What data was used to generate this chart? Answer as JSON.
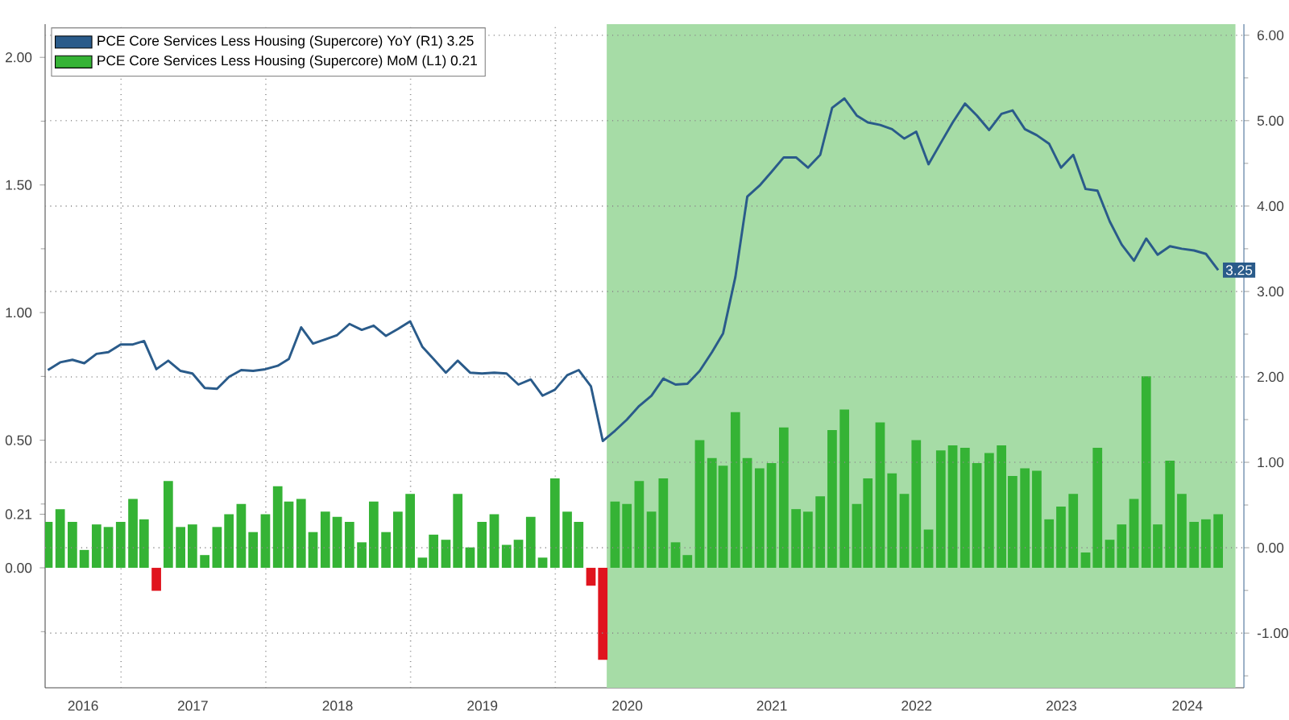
{
  "chart_data": {
    "type": "bar",
    "x": [
      "2016-06-30",
      "2016-07-31",
      "2016-08-31",
      "2016-09-30",
      "2016-10-31",
      "2016-11-30",
      "2016-12-31",
      "2017-01-31",
      "2017-02-28",
      "2017-03-31",
      "2017-04-30",
      "2017-05-31",
      "2017-06-30",
      "2017-07-31",
      "2017-08-31",
      "2017-09-30",
      "2017-10-31",
      "2017-11-30",
      "2017-12-31",
      "2018-01-31",
      "2018-02-28",
      "2018-03-31",
      "2018-04-30",
      "2018-05-31",
      "2018-06-30",
      "2018-07-31",
      "2018-08-31",
      "2018-09-30",
      "2018-10-31",
      "2018-11-30",
      "2018-12-31",
      "2019-01-31",
      "2019-02-28",
      "2019-03-31",
      "2019-04-30",
      "2019-05-31",
      "2019-06-30",
      "2019-07-31",
      "2019-08-31",
      "2019-09-30",
      "2019-10-31",
      "2019-11-30",
      "2019-12-31",
      "2020-01-31",
      "2020-02-29",
      "2020-03-31",
      "2020-04-30",
      "2020-05-31",
      "2020-06-30",
      "2020-07-31",
      "2020-08-31",
      "2020-09-30",
      "2020-10-31",
      "2020-11-30",
      "2020-12-31",
      "2021-01-31",
      "2021-02-28",
      "2021-03-31",
      "2021-04-30",
      "2021-05-31",
      "2021-06-30",
      "2021-07-31",
      "2021-08-31",
      "2021-09-30",
      "2021-10-31",
      "2021-11-30",
      "2021-12-31",
      "2022-01-31",
      "2022-02-28",
      "2022-03-31",
      "2022-04-30",
      "2022-05-31",
      "2022-06-30",
      "2022-07-31",
      "2022-08-31",
      "2022-09-30",
      "2022-10-31",
      "2022-11-30",
      "2022-12-31",
      "2023-01-31",
      "2023-02-28",
      "2023-03-31",
      "2023-04-30",
      "2023-05-31",
      "2023-06-30",
      "2023-07-31",
      "2023-08-31",
      "2023-09-30",
      "2023-10-31",
      "2023-11-30",
      "2023-12-31",
      "2024-01-31",
      "2024-02-29",
      "2024-03-31",
      "2024-04-30",
      "2024-05-31",
      "2024-06-30",
      "2024-07-31"
    ],
    "series": [
      {
        "name": "PCE Core Services Less Housing (Supercore) YoY (R1) 3.25",
        "type": "line",
        "axis": "y2",
        "color": "#2a5b8a",
        "values": [
          2.08,
          2.17,
          2.2,
          2.16,
          2.27,
          2.29,
          2.38,
          2.38,
          2.42,
          2.09,
          2.19,
          2.07,
          2.04,
          1.87,
          1.86,
          2.0,
          2.08,
          2.07,
          2.09,
          2.13,
          2.21,
          2.58,
          2.39,
          2.44,
          2.49,
          2.62,
          2.55,
          2.6,
          2.48,
          2.56,
          2.65,
          2.35,
          2.21,
          2.05,
          2.19,
          2.05,
          2.04,
          2.05,
          2.04,
          1.91,
          1.97,
          1.78,
          1.85,
          2.02,
          2.08,
          1.89,
          1.25,
          1.37,
          1.5,
          1.66,
          1.78,
          1.98,
          1.91,
          1.92,
          2.07,
          2.29,
          2.51,
          3.17,
          4.11,
          4.24,
          4.4,
          4.57,
          4.57,
          4.45,
          4.6,
          5.15,
          5.26,
          5.06,
          4.98,
          4.95,
          4.9,
          4.79,
          4.87,
          4.49,
          4.74,
          4.98,
          5.2,
          5.06,
          4.89,
          5.08,
          5.12,
          4.9,
          4.83,
          4.73,
          4.45,
          4.6,
          4.2,
          4.18,
          3.82,
          3.55,
          3.36,
          3.62,
          3.43,
          3.53,
          3.5,
          3.48,
          3.44,
          3.25
        ],
        "value_labels": [
          null,
          null,
          null,
          null,
          null,
          null,
          null,
          null,
          null,
          null,
          null,
          null,
          null,
          null,
          null,
          null,
          null,
          null,
          null,
          null,
          null,
          null,
          null,
          null,
          null,
          null,
          null,
          null,
          null,
          null,
          null,
          null,
          null,
          null,
          null,
          null,
          null,
          null,
          null,
          null,
          null,
          null,
          null,
          null,
          null,
          null,
          null,
          null,
          null,
          null,
          null,
          null,
          null,
          null,
          null,
          null,
          null,
          null,
          null,
          null,
          null,
          null,
          null,
          null,
          null,
          null,
          null,
          null,
          null,
          null,
          null,
          null,
          null,
          null,
          null,
          null,
          null,
          null,
          null,
          null,
          null,
          null,
          null,
          null,
          null,
          null,
          null,
          null,
          null,
          null,
          null,
          null,
          null,
          null,
          null,
          null,
          null,
          "3.25"
        ]
      },
      {
        "name": "PCE Core Services Less Housing (Supercore) MoM (L1) 0.21",
        "color": "#35b335",
        "values": [
          0.18,
          0.23,
          0.18,
          0.07,
          0.17,
          0.16,
          0.18,
          0.27,
          0.19,
          -0.09,
          0.34,
          0.16,
          0.17,
          0.05,
          0.16,
          0.21,
          0.25,
          0.14,
          0.21,
          0.32,
          0.26,
          0.27,
          0.14,
          0.22,
          0.2,
          0.18,
          0.1,
          0.26,
          0.14,
          0.22,
          0.29,
          0.04,
          0.13,
          0.11,
          0.29,
          0.08,
          0.18,
          0.21,
          0.09,
          0.11,
          0.2,
          0.04,
          0.35,
          0.22,
          0.18,
          -0.07,
          -0.36,
          0.26,
          0.25,
          0.34,
          0.22,
          0.35,
          0.1,
          0.05,
          0.5,
          0.43,
          0.4,
          0.61,
          0.43,
          0.39,
          0.41,
          0.55,
          0.23,
          0.22,
          0.28,
          0.54,
          0.62,
          0.25,
          0.35,
          0.57,
          0.37,
          0.29,
          0.5,
          0.15,
          0.46,
          0.48,
          0.47,
          0.41,
          0.45,
          0.48,
          0.36,
          0.39,
          0.38,
          0.19,
          0.24,
          0.29,
          0.06,
          0.47,
          0.11,
          0.17,
          0.27,
          0.75,
          0.17,
          0.42,
          0.29,
          0.18,
          0.19,
          0.21
        ],
        "colors": [
          "#35b335",
          "#35b335",
          "#35b335",
          "#35b335",
          "#35b335",
          "#35b335",
          "#35b335",
          "#35b335",
          "#35b335",
          "#e0141e",
          "#35b335",
          "#35b335",
          "#35b335",
          "#35b335",
          "#35b335",
          "#35b335",
          "#35b335",
          "#35b335",
          "#35b335",
          "#35b335",
          "#35b335",
          "#35b335",
          "#35b335",
          "#35b335",
          "#35b335",
          "#35b335",
          "#35b335",
          "#35b335",
          "#35b335",
          "#35b335",
          "#35b335",
          "#35b335",
          "#35b335",
          "#35b335",
          "#35b335",
          "#35b335",
          "#35b335",
          "#35b335",
          "#35b335",
          "#35b335",
          "#35b335",
          "#35b335",
          "#35b335",
          "#35b335",
          "#35b335",
          "#e0141e",
          "#e0141e",
          "#35b335",
          "#35b335",
          "#35b335",
          "#35b335",
          "#35b335",
          "#35b335",
          "#35b335",
          "#35b335",
          "#35b335",
          "#35b335",
          "#35b335",
          "#35b335",
          "#35b335",
          "#35b335",
          "#35b335",
          "#35b335",
          "#35b335",
          "#35b335",
          "#35b335",
          "#35b335",
          "#35b335",
          "#35b335",
          "#35b335",
          "#35b335",
          "#35b335",
          "#35b335",
          "#35b335",
          "#35b335",
          "#35b335",
          "#35b335",
          "#35b335",
          "#35b335",
          "#35b335",
          "#35b335",
          "#35b335",
          "#35b335",
          "#35b335",
          "#35b335",
          "#35b335",
          "#35b335",
          "#35b335",
          "#35b335",
          "#35b335",
          "#35b335",
          "#35b335",
          "#35b335",
          "#35b335",
          "#35b335",
          "#35b335",
          "#35b335",
          "#35b335"
        ]
      }
    ],
    "xlim": [
      "2016-06-23",
      "2024-10-04"
    ],
    "xticks": [
      {
        "value": "2017-01-01",
        "label": null
      },
      {
        "value": "2018-01-01",
        "label": null
      },
      {
        "value": "2019-01-01",
        "label": null
      },
      {
        "value": "2020-01-01",
        "label": null
      },
      {
        "value": "2021-01-01",
        "label": null
      },
      {
        "value": "2022-01-01",
        "label": null
      },
      {
        "value": "2023-01-01",
        "label": null
      },
      {
        "value": "2024-01-01",
        "label": null
      },
      {
        "value": "2016-09-27",
        "label": "2016"
      },
      {
        "value": "2017-07-01",
        "label": "2017"
      },
      {
        "value": "2018-07-01",
        "label": "2018"
      },
      {
        "value": "2019-07-01",
        "label": "2019"
      },
      {
        "value": "2020-07-01",
        "label": "2020"
      },
      {
        "value": "2021-07-01",
        "label": "2021"
      },
      {
        "value": "2022-07-01",
        "label": "2022"
      },
      {
        "value": "2023-07-01",
        "label": "2023"
      },
      {
        "value": "2024-05-14",
        "label": "2024"
      }
    ],
    "ylim": [
      -0.47,
      2.13
    ],
    "yticks": [
      {
        "value": 0,
        "label": "0.00"
      },
      {
        "value": 0.5,
        "label": "0.50"
      },
      {
        "value": 1,
        "label": "1.00"
      },
      {
        "value": 1.5,
        "label": "1.50"
      },
      {
        "value": 2,
        "label": "2.00"
      },
      {
        "value": 0.21,
        "label": "0.21"
      },
      {
        "value": -0.25,
        "label": null
      },
      {
        "value": 0.25,
        "label": null
      },
      {
        "value": 0.75,
        "label": null
      },
      {
        "value": 1.25,
        "label": null
      },
      {
        "value": 1.75,
        "label": null
      }
    ],
    "y2lim": [
      -1.64,
      6.13
    ],
    "y2ticks": [
      {
        "value": -1,
        "label": "-1.00"
      },
      {
        "value": 0,
        "label": "0.00"
      },
      {
        "value": 1,
        "label": "1.00"
      },
      {
        "value": 2,
        "label": "2.00"
      },
      {
        "value": 3,
        "label": "3.00"
      },
      {
        "value": 4,
        "label": "4.00"
      },
      {
        "value": 5,
        "label": "5.00"
      },
      {
        "value": 6,
        "label": "6.00"
      },
      {
        "value": -1.5,
        "label": null
      },
      {
        "value": -0.5,
        "label": null
      },
      {
        "value": 0.5,
        "label": null
      },
      {
        "value": 1.5,
        "label": null
      },
      {
        "value": 2.5,
        "label": null
      },
      {
        "value": 3.5,
        "label": null
      },
      {
        "value": 4.5,
        "label": null
      },
      {
        "value": 5.5,
        "label": null
      }
    ],
    "bands": [
      {
        "axis": "x",
        "from": "2020-05-10",
        "to": "2024-09-13",
        "color": "#a6dca6"
      }
    ],
    "grid": true,
    "legend": "top left"
  }
}
